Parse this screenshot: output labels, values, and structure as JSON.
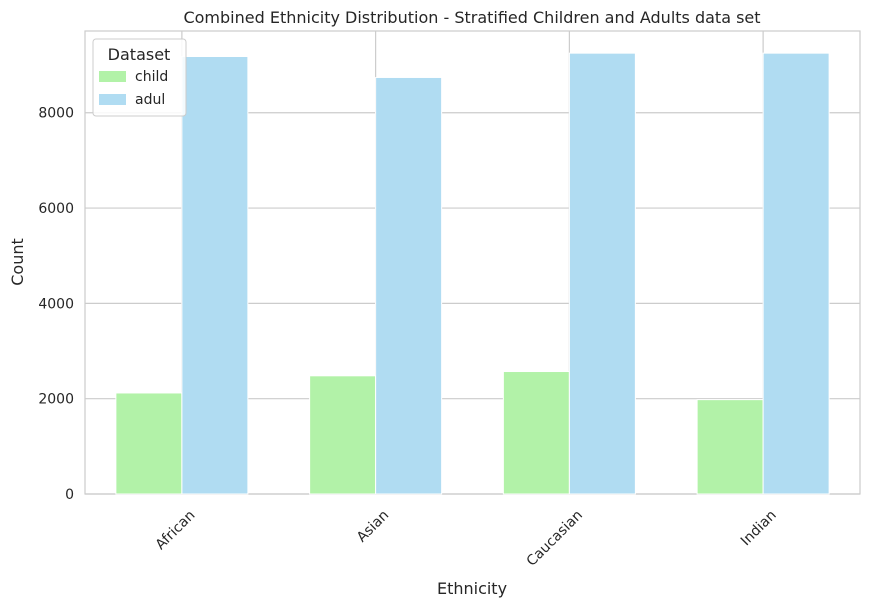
{
  "chart_data": {
    "type": "bar",
    "title": "Combined Ethnicity Distribution - Stratified Children and Adults data set",
    "xlabel": "Ethnicity",
    "ylabel": "Count",
    "categories": [
      "African",
      "Asian",
      "Caucasian",
      "Indian"
    ],
    "series": [
      {
        "name": "child",
        "color": "#b2f2a8",
        "values": [
          2120,
          2480,
          2570,
          1980
        ]
      },
      {
        "name": "adul",
        "color": "#b0dcf2",
        "values": [
          9180,
          8740,
          9250,
          9250
        ]
      }
    ],
    "ylim": [
      0,
      9715
    ],
    "yticks": [
      0,
      2000,
      4000,
      6000,
      8000
    ],
    "ytick_labels": [
      "0",
      "2000",
      "4000",
      "6000",
      "8000"
    ],
    "grid": true,
    "legend": {
      "title": "Dataset",
      "position": "top-left"
    }
  }
}
